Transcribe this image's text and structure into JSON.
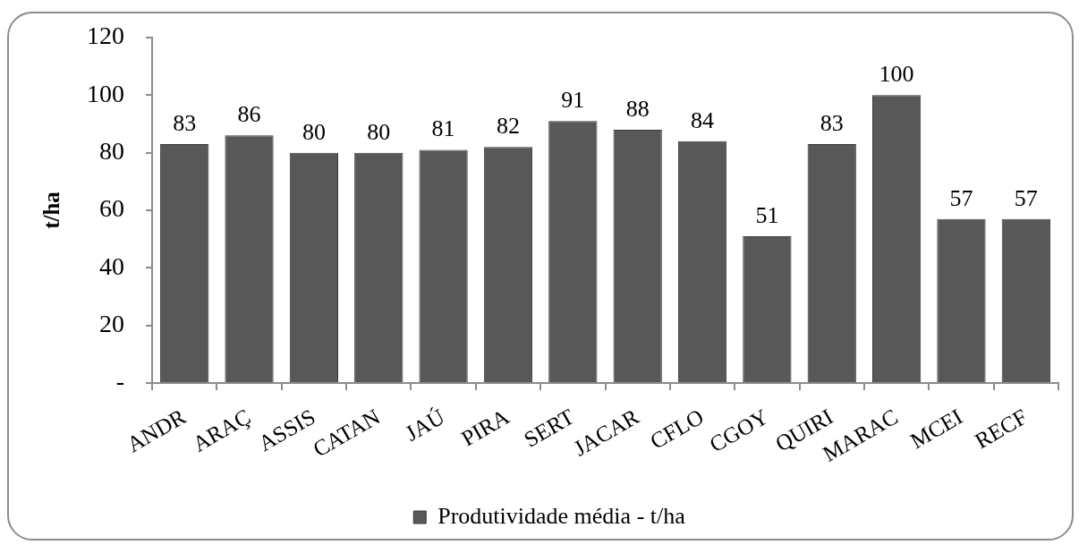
{
  "chart_data": {
    "type": "bar",
    "ylabel": "t/ha",
    "categories": [
      "ANDR",
      "ARAÇ",
      "ASSIS",
      "CATAN",
      "JAÚ",
      "PIRA",
      "SERT",
      "JACAR",
      "CFLO",
      "CGOY",
      "QUIRI",
      "MARAC",
      "MCEI",
      "RECF"
    ],
    "series": [
      {
        "name": "Produtividade média - t/ha",
        "color": "#585858",
        "values": [
          83,
          86,
          80,
          80,
          81,
          82,
          91,
          88,
          84,
          51,
          83,
          100,
          57,
          57
        ]
      }
    ],
    "ylim": [
      0,
      120
    ],
    "yticks": [
      {
        "value": 0,
        "label": "-"
      },
      20,
      40,
      60,
      80,
      100,
      120
    ],
    "data_labels": true,
    "legend": "bottom",
    "grid": false
  }
}
